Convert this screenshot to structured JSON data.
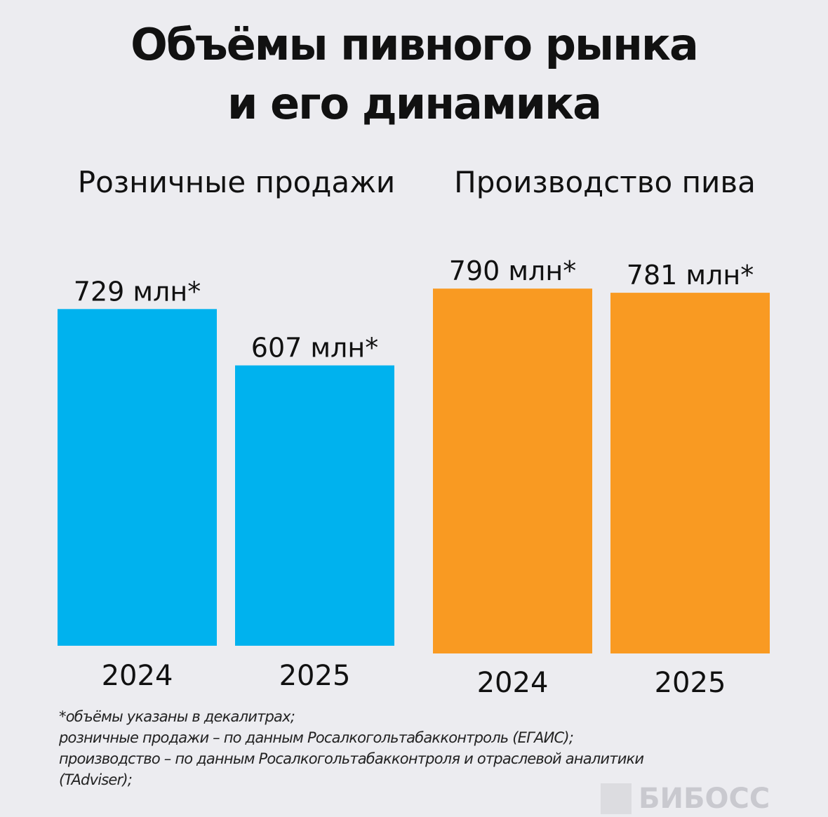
{
  "title_lines": [
    "Объёмы пивного рынка",
    "и его динамика"
  ],
  "colors": {
    "background": "#ececf0",
    "retail": "#00b2ee",
    "production": "#f99a22"
  },
  "chart_data": [
    {
      "type": "bar",
      "title": "Розничные продажи",
      "categories": [
        "2024",
        "2025"
      ],
      "values": [
        729,
        607
      ],
      "data_labels": [
        "729 млн*",
        "607 млн*"
      ],
      "unit": "млн декалитров",
      "color": "#00b2ee",
      "grid": false
    },
    {
      "type": "bar",
      "title": "Производство пива",
      "categories": [
        "2024",
        "2025"
      ],
      "values": [
        790,
        781
      ],
      "data_labels": [
        "790 млн*",
        "781 млн*"
      ],
      "unit": "млн декалитров",
      "color": "#f99a22",
      "grid": false
    }
  ],
  "footnote": [
    "*объёмы указаны в декалитрах;",
    "розничные продажи – по данным Росалкогольтабакконтроль (ЕГАИС);",
    "производство – по данным Росалкогольтабакконтроля и отраслевой аналитики",
    "(TAdviser);"
  ],
  "logo": "БИБОСС"
}
